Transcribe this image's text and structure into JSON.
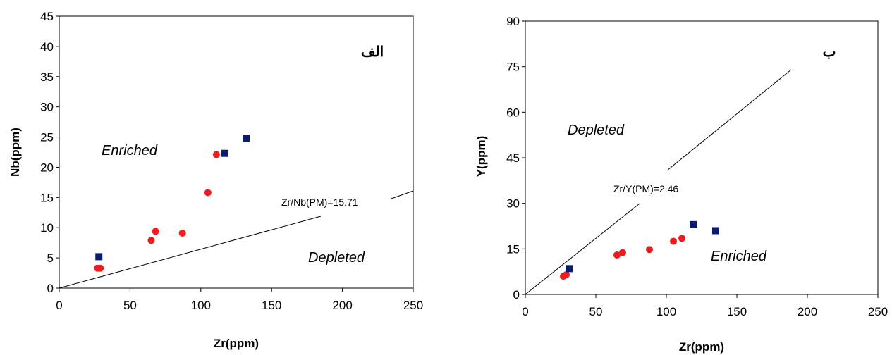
{
  "chart_data": [
    {
      "type": "scatter",
      "panel_label": "الف",
      "xlabel": "Zr(ppm)",
      "ylabel": "Nb(ppm)",
      "xlim": [
        0,
        250
      ],
      "ylim": [
        0,
        45
      ],
      "xticks": [
        0,
        50,
        100,
        150,
        200,
        250
      ],
      "yticks": [
        0,
        5,
        10,
        15,
        20,
        25,
        30,
        35,
        40,
        45
      ],
      "grid": false,
      "series": [
        {
          "marker": "circle",
          "color": "#ee1c1c",
          "points": [
            [
              27,
              3.3
            ],
            [
              29,
              3.3
            ],
            [
              65,
              7.9
            ],
            [
              68,
              9.4
            ],
            [
              87,
              9.1
            ],
            [
              105,
              15.8
            ],
            [
              111,
              22.1
            ]
          ]
        },
        {
          "marker": "square",
          "color": "#0a1a6e",
          "points": [
            [
              28,
              5.2
            ],
            [
              117,
              22.3
            ],
            [
              132,
              24.8
            ]
          ]
        }
      ],
      "reference_line": {
        "label": "Zr/Nb(PM)=15.71",
        "from": [
          0,
          0
        ],
        "to": [
          250,
          15.9
        ]
      },
      "regions": {
        "upper": "Enriched",
        "lower": "Depleted"
      }
    },
    {
      "type": "scatter",
      "panel_label": "ب",
      "xlabel": "Zr(ppm)",
      "ylabel": "Y(ppm)",
      "xlim": [
        0,
        250
      ],
      "ylim": [
        0,
        90
      ],
      "xticks": [
        0,
        50,
        100,
        150,
        200,
        250
      ],
      "yticks": [
        0,
        15,
        30,
        45,
        60,
        75,
        90
      ],
      "grid": false,
      "series": [
        {
          "marker": "circle",
          "color": "#ee1c1c",
          "points": [
            [
              27,
              6.0
            ],
            [
              29,
              6.5
            ],
            [
              65,
              13.0
            ],
            [
              69,
              13.8
            ],
            [
              88,
              14.8
            ],
            [
              105,
              17.5
            ],
            [
              111,
              18.5
            ]
          ]
        },
        {
          "marker": "square",
          "color": "#0a1a6e",
          "points": [
            [
              31,
              8.5
            ],
            [
              119,
              23.0
            ],
            [
              135,
              21.0
            ]
          ]
        }
      ],
      "reference_line": {
        "label": "Zr/Y(PM)=2.46",
        "from": [
          0,
          0
        ],
        "to": [
          185,
          73.8
        ]
      },
      "regions": {
        "upper": "Depleted",
        "lower": "Enriched"
      }
    }
  ]
}
